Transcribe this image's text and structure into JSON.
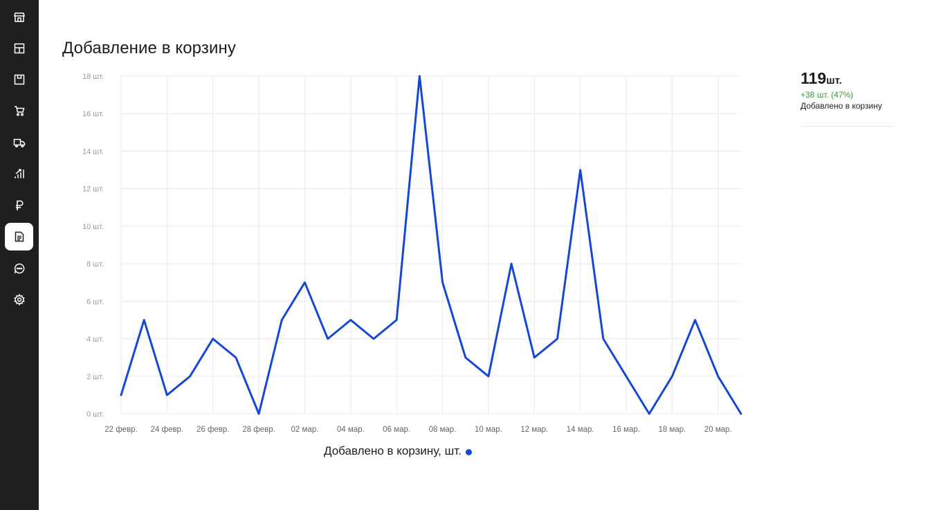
{
  "sidebar": {
    "items": [
      {
        "icon": "store-icon",
        "active": false
      },
      {
        "icon": "layout-icon",
        "active": false
      },
      {
        "icon": "package-icon",
        "active": false
      },
      {
        "icon": "cart-icon",
        "active": false
      },
      {
        "icon": "truck-icon",
        "active": false
      },
      {
        "icon": "analytics-icon",
        "active": false
      },
      {
        "icon": "ruble-icon",
        "active": false
      },
      {
        "icon": "report-icon",
        "active": true
      },
      {
        "icon": "chat-icon",
        "active": false
      },
      {
        "icon": "settings-icon",
        "active": false
      }
    ]
  },
  "page": {
    "title": "Добавление в корзину"
  },
  "summary": {
    "total": "119",
    "unit": "шт.",
    "delta": "+38 шт. (47%)",
    "caption": "Добавлено в корзину"
  },
  "legend": {
    "label": "Добавлено в корзину, шт."
  },
  "colors": {
    "series": "#1447d4",
    "grid": "#e9e9e9",
    "sidebar": "#1f1f1f",
    "positive": "#2e9e2e"
  },
  "chart_data": {
    "type": "line",
    "title": "",
    "xlabel": "",
    "ylabel": "",
    "ylim": [
      0,
      18
    ],
    "y_ticks": [
      0,
      2,
      4,
      6,
      8,
      10,
      12,
      14,
      16,
      18
    ],
    "y_tick_labels": [
      "0 шт.",
      "2 шт.",
      "4 шт.",
      "6 шт.",
      "8 шт.",
      "10 шт.",
      "12 шт.",
      "14 шт.",
      "16 шт.",
      "18 шт."
    ],
    "x_tick_labels": [
      "22 февр.",
      "24 февр.",
      "26 февр.",
      "28 февр.",
      "02 мар.",
      "04 мар.",
      "06 мар.",
      "08 мар.",
      "10 мар.",
      "12 мар.",
      "14 мар.",
      "16 мар.",
      "18 мар.",
      "20 мар."
    ],
    "grid": true,
    "legend_position": "bottom",
    "x": [
      "22 февр.",
      "23 февр.",
      "24 февр.",
      "25 февр.",
      "26 февр.",
      "27 февр.",
      "28 февр.",
      "01 мар.",
      "02 мар.",
      "03 мар.",
      "04 мар.",
      "05 мар.",
      "06 мар.",
      "07 мар.",
      "08 мар.",
      "09 мар.",
      "10 мар.",
      "11 мар.",
      "12 мар.",
      "13 мар.",
      "14 мар.",
      "15 мар.",
      "16 мар.",
      "17 мар.",
      "18 мар.",
      "19 мар.",
      "20 мар.",
      "21 мар."
    ],
    "series": [
      {
        "name": "Добавлено в корзину, шт.",
        "values": [
          1,
          5,
          1,
          2,
          4,
          3,
          0,
          5,
          7,
          4,
          5,
          4,
          5,
          18,
          7,
          3,
          2,
          8,
          3,
          4,
          13,
          4,
          2,
          0,
          2,
          5,
          2,
          0
        ]
      }
    ]
  }
}
